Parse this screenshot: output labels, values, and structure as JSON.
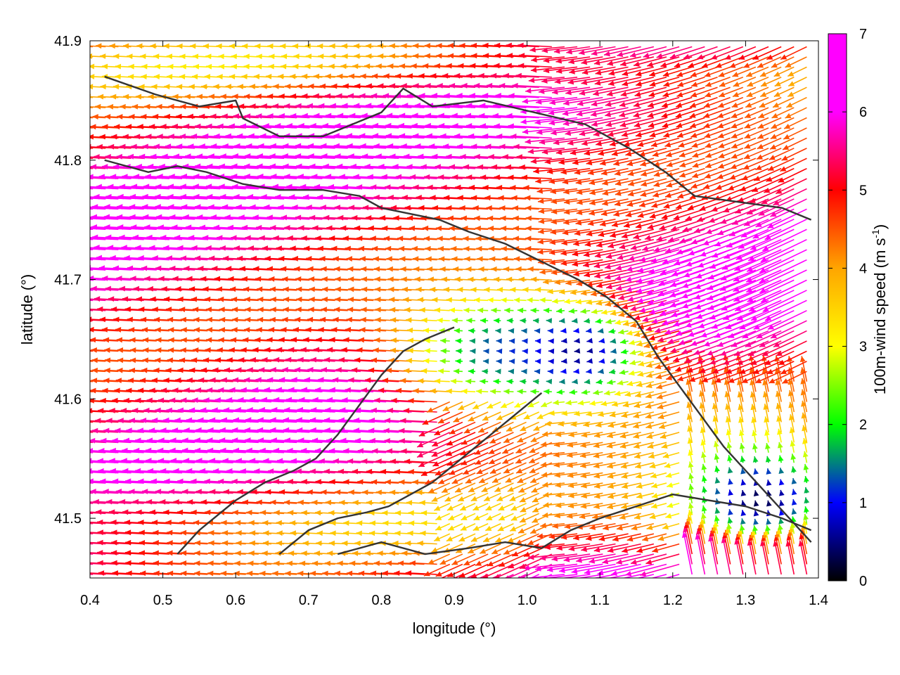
{
  "chart_data": {
    "type": "vector_field",
    "title": "",
    "xlabel": "longitude (°)",
    "ylabel": "latitude (°)",
    "xlim": [
      0.4,
      1.4
    ],
    "ylim": [
      41.45,
      41.9
    ],
    "xticks": [
      "0.4",
      "0.5",
      "0.6",
      "0.7",
      "0.8",
      "0.9",
      "1.0",
      "1.1",
      "1.2",
      "1.3",
      "1.4"
    ],
    "yticks": [
      "41.5",
      "41.6",
      "41.7",
      "41.8",
      "41.9"
    ],
    "grid": false,
    "colorbar": {
      "label_main": "100m-wind speed (m s",
      "label_sup": "-1",
      "label_close": ")",
      "range": [
        0,
        7
      ],
      "ticks": [
        "0",
        "1",
        "2",
        "3",
        "4",
        "5",
        "6",
        "7"
      ],
      "colormap": [
        "#000000",
        "#0000ff",
        "#00ff00",
        "#ffff00",
        "#ffa500",
        "#ff0000",
        "#ff00ff"
      ]
    },
    "wind_field_features": [
      {
        "lon": 0.95,
        "lat": 41.64,
        "speed": 2.0,
        "description_type": "slow zone"
      },
      {
        "lon": 1.07,
        "lat": 41.64,
        "speed": 0.6,
        "description_type": "calm core"
      },
      {
        "lon": 1.32,
        "lat": 41.52,
        "speed": 1.0,
        "description_type": "slow zone"
      }
    ],
    "coastlines_lonlat": [
      [
        [
          0.42,
          41.87
        ],
        [
          0.49,
          41.855
        ],
        [
          0.55,
          41.845
        ],
        [
          0.6,
          41.85
        ],
        [
          0.61,
          41.835
        ],
        [
          0.66,
          41.82
        ],
        [
          0.72,
          41.82
        ],
        [
          0.8,
          41.84
        ],
        [
          0.83,
          41.86
        ],
        [
          0.87,
          41.845
        ],
        [
          0.94,
          41.85
        ],
        [
          1.01,
          41.84
        ],
        [
          1.08,
          41.83
        ],
        [
          1.14,
          41.81
        ],
        [
          1.19,
          41.79
        ],
        [
          1.23,
          41.77
        ],
        [
          1.29,
          41.765
        ],
        [
          1.35,
          41.76
        ],
        [
          1.39,
          41.75
        ]
      ],
      [
        [
          0.42,
          41.8
        ],
        [
          0.48,
          41.79
        ],
        [
          0.52,
          41.795
        ],
        [
          0.56,
          41.79
        ],
        [
          0.61,
          41.78
        ],
        [
          0.66,
          41.775
        ],
        [
          0.72,
          41.775
        ],
        [
          0.77,
          41.77
        ],
        [
          0.8,
          41.76
        ],
        [
          0.84,
          41.755
        ],
        [
          0.88,
          41.75
        ],
        [
          0.92,
          41.74
        ],
        [
          0.97,
          41.73
        ],
        [
          1.02,
          41.715
        ],
        [
          1.07,
          41.7
        ],
        [
          1.11,
          41.685
        ],
        [
          1.15,
          41.665
        ],
        [
          1.18,
          41.635
        ],
        [
          1.21,
          41.61
        ],
        [
          1.24,
          41.585
        ],
        [
          1.27,
          41.56
        ],
        [
          1.3,
          41.54
        ],
        [
          1.33,
          41.52
        ],
        [
          1.36,
          41.5
        ],
        [
          1.39,
          41.48
        ]
      ],
      [
        [
          0.52,
          41.47
        ],
        [
          0.55,
          41.49
        ],
        [
          0.6,
          41.515
        ],
        [
          0.64,
          41.53
        ],
        [
          0.68,
          41.54
        ],
        [
          0.71,
          41.55
        ],
        [
          0.74,
          41.57
        ],
        [
          0.77,
          41.595
        ],
        [
          0.8,
          41.62
        ],
        [
          0.83,
          41.64
        ],
        [
          0.86,
          41.65
        ],
        [
          0.9,
          41.66
        ]
      ],
      [
        [
          0.66,
          41.47
        ],
        [
          0.7,
          41.49
        ],
        [
          0.74,
          41.5
        ],
        [
          0.78,
          41.505
        ],
        [
          0.81,
          41.51
        ],
        [
          0.84,
          41.52
        ],
        [
          0.87,
          41.53
        ],
        [
          0.9,
          41.545
        ],
        [
          0.93,
          41.56
        ],
        [
          0.96,
          41.575
        ],
        [
          0.99,
          41.59
        ],
        [
          1.02,
          41.605
        ]
      ],
      [
        [
          0.74,
          41.47
        ],
        [
          0.8,
          41.48
        ],
        [
          0.86,
          41.47
        ],
        [
          0.92,
          41.475
        ],
        [
          0.97,
          41.48
        ],
        [
          1.02,
          41.475
        ],
        [
          1.06,
          41.49
        ],
        [
          1.1,
          41.5
        ],
        [
          1.15,
          41.51
        ],
        [
          1.2,
          41.52
        ],
        [
          1.25,
          41.515
        ],
        [
          1.3,
          41.51
        ],
        [
          1.35,
          41.5
        ],
        [
          1.39,
          41.49
        ]
      ]
    ]
  }
}
